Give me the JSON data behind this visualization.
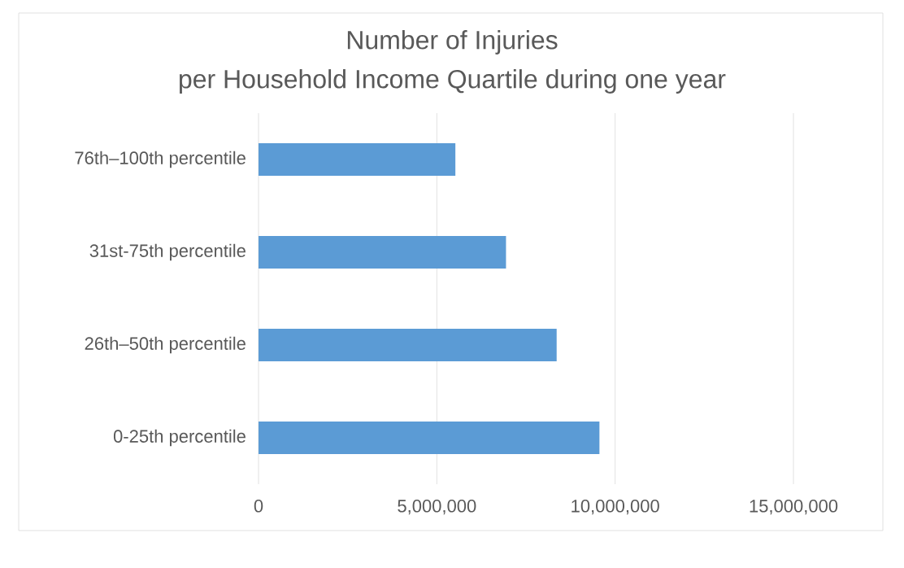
{
  "chart_data": {
    "type": "bar",
    "orientation": "horizontal",
    "title": "Number of Injuries",
    "subtitle": "per Household Income Quartile during one year",
    "categories": [
      "76th–100th percentile",
      "31st-75th percentile",
      "26th–50th percentile",
      "0-25th percentile"
    ],
    "values": [
      5520000,
      6940000,
      8360000,
      9560000
    ],
    "color": "#5b9bd5",
    "xlim": [
      0,
      15000000
    ],
    "xticks": [
      0,
      {
        "value": 5000000,
        "label": "5,000,000"
      },
      {
        "value": 10000000,
        "label": "10,000,000"
      },
      {
        "value": 15000000,
        "label": "15,000,000"
      }
    ],
    "grid": "x"
  }
}
